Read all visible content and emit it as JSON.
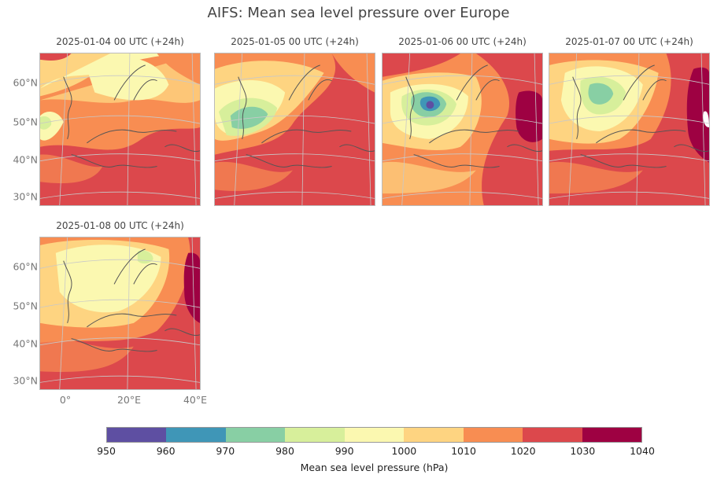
{
  "title": "AIFS: Mean sea level pressure over Europe",
  "panels": [
    {
      "title": "2025-01-04 00 UTC (+24h)"
    },
    {
      "title": "2025-01-05 00 UTC (+24h)"
    },
    {
      "title": "2025-01-06 00 UTC (+24h)"
    },
    {
      "title": "2025-01-07 00 UTC (+24h)"
    },
    {
      "title": "2025-01-08 00 UTC (+24h)"
    }
  ],
  "lat_ticks": [
    "60°N",
    "50°N",
    "40°N",
    "30°N"
  ],
  "lon_ticks": [
    "0°",
    "20°E",
    "40°E"
  ],
  "colorbar": {
    "label": "Mean sea level pressure (hPa)",
    "ticks": [
      "950",
      "960",
      "970",
      "980",
      "990",
      "1000",
      "1010",
      "1020",
      "1030",
      "1040"
    ],
    "colors": [
      "#5e4fa2",
      "#3f96b7",
      "#88cfa4",
      "#d7ef9b",
      "#fbf8b0",
      "#fed481",
      "#f88d52",
      "#dc484c",
      "#9e0142"
    ]
  }
}
